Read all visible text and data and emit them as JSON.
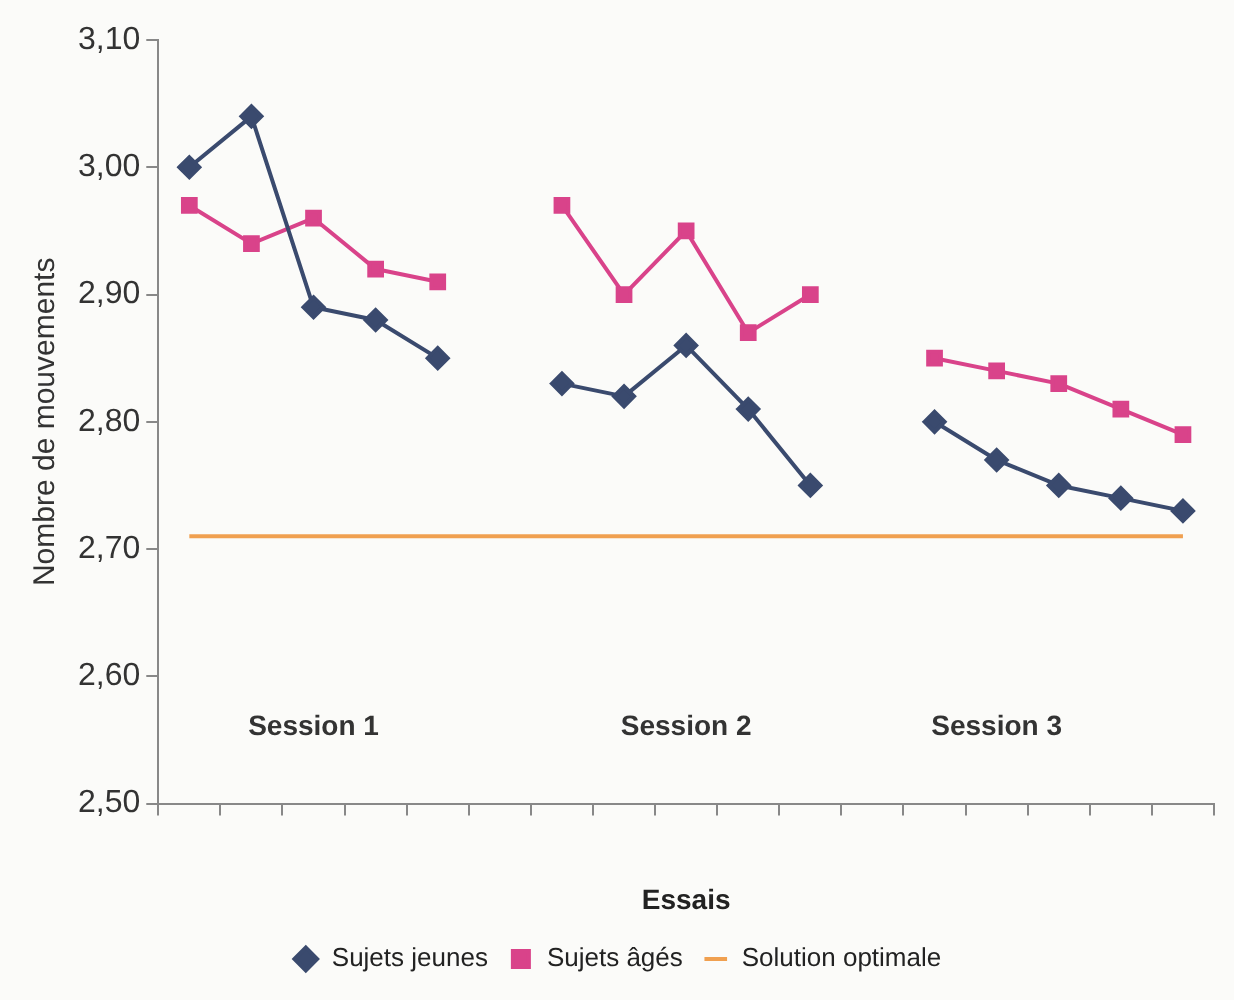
{
  "chart_data": {
    "type": "line",
    "xlabel": "Essais",
    "ylabel": "Nombre de mouvements",
    "categories": [
      null,
      null,
      null,
      null,
      null,
      null,
      null,
      null,
      null,
      null,
      null,
      null,
      null,
      null,
      null,
      null,
      null
    ],
    "ylim": [
      2.5,
      3.1
    ],
    "yticks": [
      {
        "value": 2.5,
        "label": "2,50"
      },
      {
        "value": 2.6,
        "label": "2,60"
      },
      {
        "value": 2.7,
        "label": "2,70"
      },
      {
        "value": 2.8,
        "label": "2,80"
      },
      {
        "value": 2.9,
        "label": "2,90"
      },
      {
        "value": 3.0,
        "label": "3,00"
      },
      {
        "value": 3.1,
        "label": "3,10"
      }
    ],
    "series": [
      {
        "name": "Sujets jeunes",
        "color": "#3a4a6e",
        "marker": "diamond",
        "values": [
          3.0,
          3.04,
          2.89,
          2.88,
          2.85,
          null,
          2.83,
          2.82,
          2.86,
          2.81,
          2.75,
          null,
          2.8,
          2.77,
          2.75,
          2.74,
          2.73
        ]
      },
      {
        "name": "Sujets âgés",
        "color": "#d9438a",
        "marker": "square",
        "values": [
          2.97,
          2.94,
          2.96,
          2.92,
          2.91,
          null,
          2.97,
          2.9,
          2.95,
          2.87,
          2.9,
          null,
          2.85,
          2.84,
          2.83,
          2.81,
          2.79
        ]
      },
      {
        "name": "Solution optimale",
        "color": "#f0a050",
        "marker": "none",
        "values": [
          2.71,
          2.71,
          2.71,
          2.71,
          2.71,
          2.71,
          2.71,
          2.71,
          2.71,
          2.71,
          2.71,
          2.71,
          2.71,
          2.71,
          2.71,
          2.71,
          2.71
        ]
      }
    ],
    "annotations": [
      "Session 1",
      "Session 2",
      "Session 3"
    ],
    "grid": false,
    "legend": "bottom"
  }
}
